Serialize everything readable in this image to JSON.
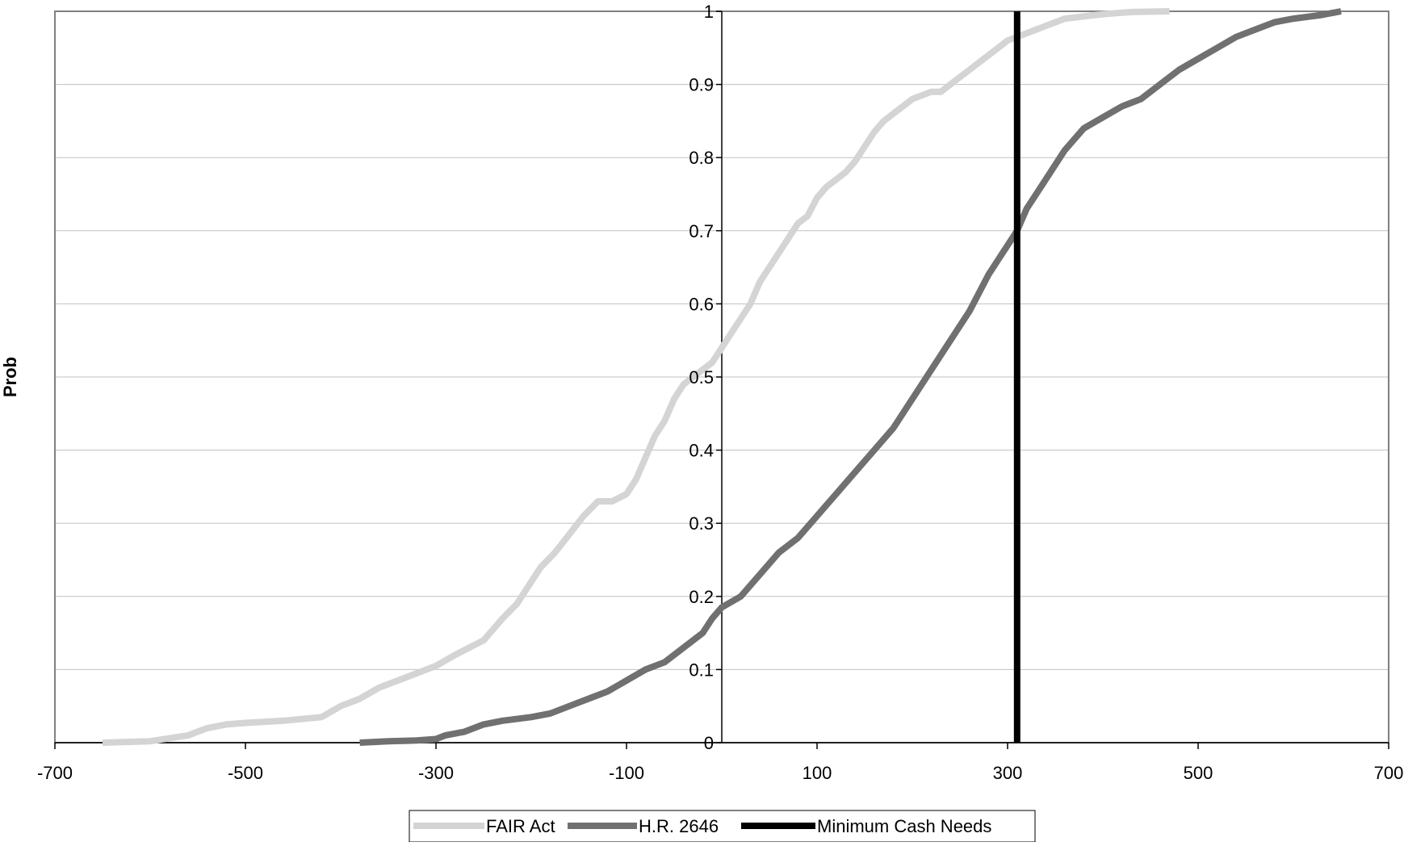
{
  "chart_data": {
    "type": "line",
    "title": "",
    "xlabel": "",
    "ylabel": "Prob",
    "xlim": [
      -700,
      700
    ],
    "ylim": [
      0,
      1
    ],
    "x_ticks": [
      -700,
      -500,
      -300,
      -100,
      100,
      300,
      500,
      700
    ],
    "x_tick_labels": [
      "-700",
      "-500",
      "-300",
      "-100",
      "100",
      "300",
      "500",
      "700"
    ],
    "y_ticks": [
      0,
      0.1,
      0.2,
      0.3,
      0.4,
      0.5,
      0.6,
      0.7,
      0.8,
      0.9,
      1
    ],
    "y_tick_labels": [
      "0",
      "0.1",
      "0.2",
      "0.3",
      "0.4",
      "0.5",
      "0.6",
      "0.7",
      "0.8",
      "0.9",
      "1"
    ],
    "grid": "horizontal",
    "legend_position": "bottom",
    "series": [
      {
        "name": "FAIR Act",
        "color": "#d4d4d4",
        "style": "cdf",
        "x": [
          -650,
          -600,
          -560,
          -540,
          -520,
          -500,
          -460,
          -420,
          -400,
          -380,
          -360,
          -330,
          -300,
          -280,
          -250,
          -230,
          -215,
          -200,
          -190,
          -175,
          -160,
          -145,
          -130,
          -115,
          -100,
          -90,
          -80,
          -70,
          -60,
          -50,
          -40,
          -30,
          -20,
          -10,
          0,
          10,
          20,
          30,
          40,
          50,
          60,
          70,
          80,
          90,
          100,
          110,
          120,
          130,
          140,
          150,
          160,
          170,
          180,
          190,
          200,
          210,
          220,
          230,
          240,
          250,
          260,
          270,
          280,
          290,
          300,
          310,
          320,
          330,
          340,
          350,
          360,
          380,
          400,
          430,
          470
        ],
        "y": [
          0,
          0.002,
          0.01,
          0.02,
          0.025,
          0.027,
          0.03,
          0.035,
          0.05,
          0.06,
          0.075,
          0.09,
          0.105,
          0.12,
          0.14,
          0.17,
          0.19,
          0.22,
          0.24,
          0.26,
          0.285,
          0.31,
          0.33,
          0.33,
          0.34,
          0.36,
          0.39,
          0.42,
          0.44,
          0.47,
          0.49,
          0.5,
          0.51,
          0.52,
          0.54,
          0.56,
          0.58,
          0.6,
          0.63,
          0.65,
          0.67,
          0.69,
          0.71,
          0.72,
          0.745,
          0.76,
          0.77,
          0.78,
          0.795,
          0.815,
          0.835,
          0.85,
          0.86,
          0.87,
          0.88,
          0.885,
          0.89,
          0.89,
          0.9,
          0.91,
          0.92,
          0.93,
          0.94,
          0.95,
          0.96,
          0.965,
          0.97,
          0.975,
          0.98,
          0.985,
          0.99,
          0.993,
          0.996,
          0.999,
          1
        ]
      },
      {
        "name": "H.R. 2646",
        "color": "#707070",
        "style": "cdf",
        "x": [
          -380,
          -350,
          -320,
          -300,
          -290,
          -270,
          -250,
          -230,
          -200,
          -180,
          -160,
          -140,
          -120,
          -100,
          -80,
          -60,
          -40,
          -20,
          -10,
          0,
          20,
          40,
          60,
          80,
          100,
          120,
          140,
          160,
          180,
          200,
          220,
          240,
          260,
          280,
          290,
          300,
          310,
          320,
          340,
          360,
          380,
          400,
          420,
          440,
          460,
          480,
          500,
          520,
          540,
          560,
          580,
          600,
          630,
          650
        ],
        "y": [
          0,
          0.002,
          0.003,
          0.005,
          0.01,
          0.015,
          0.025,
          0.03,
          0.035,
          0.04,
          0.05,
          0.06,
          0.07,
          0.085,
          0.1,
          0.11,
          0.13,
          0.15,
          0.17,
          0.185,
          0.2,
          0.23,
          0.26,
          0.28,
          0.31,
          0.34,
          0.37,
          0.4,
          0.43,
          0.47,
          0.51,
          0.55,
          0.59,
          0.64,
          0.66,
          0.68,
          0.7,
          0.73,
          0.77,
          0.81,
          0.84,
          0.855,
          0.87,
          0.88,
          0.9,
          0.92,
          0.935,
          0.95,
          0.965,
          0.975,
          0.985,
          0.99,
          0.995,
          1
        ]
      },
      {
        "name": "Minimum Cash Needs",
        "color": "#000000",
        "style": "vertical",
        "x": [
          310,
          310
        ],
        "y": [
          0,
          1
        ]
      }
    ]
  }
}
